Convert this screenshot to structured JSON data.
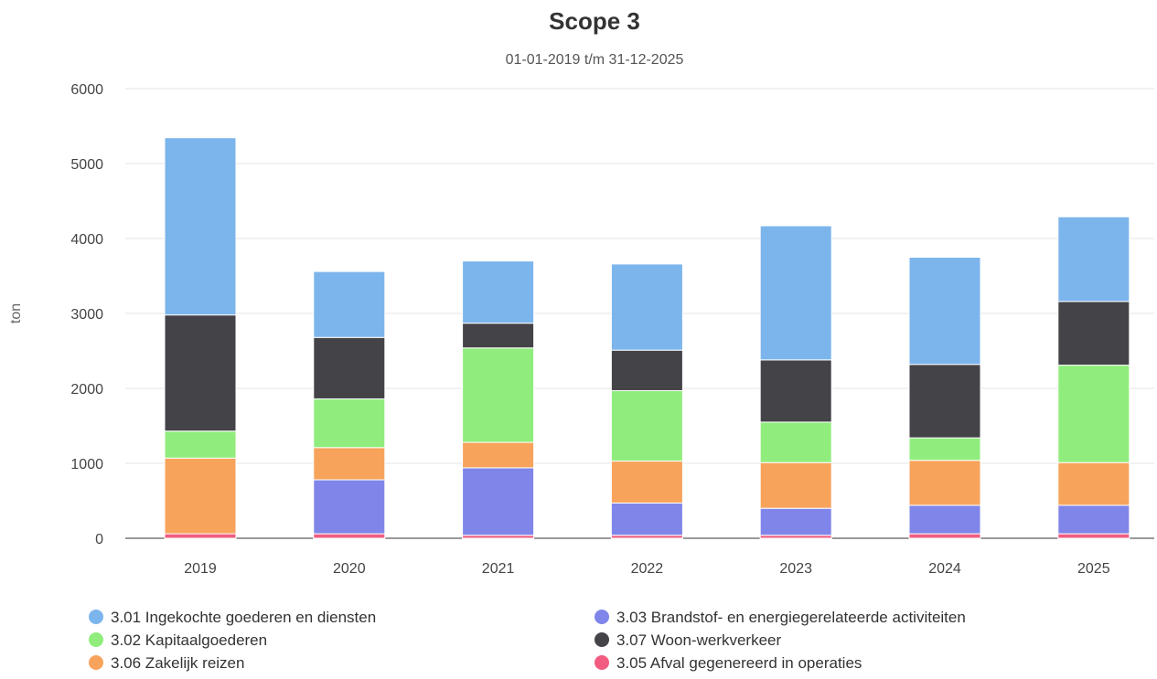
{
  "chart_data": {
    "type": "bar",
    "stacked": true,
    "title": "Scope 3",
    "subtitle": "01-01-2019 t/m 31-12-2025",
    "y_label": "ton",
    "categories": [
      "2019",
      "2020",
      "2021",
      "2022",
      "2023",
      "2024",
      "2025"
    ],
    "ylim": [
      0,
      6000
    ],
    "yticks": [
      0,
      1000,
      2000,
      3000,
      4000,
      5000,
      6000
    ],
    "grid": true,
    "series": [
      {
        "name": "3.05 Afval gegenereerd in operaties",
        "color": "#f15c80",
        "values": [
          60,
          60,
          40,
          40,
          40,
          60,
          60
        ]
      },
      {
        "name": "3.03 Brandstof- en energiegerelateerde activiteiten",
        "color": "#8085e9",
        "values": [
          0,
          720,
          900,
          430,
          360,
          380,
          380
        ]
      },
      {
        "name": "3.06 Zakelijk reizen",
        "color": "#f7a35c",
        "values": [
          1010,
          430,
          340,
          560,
          610,
          600,
          570
        ]
      },
      {
        "name": "3.02 Kapitaalgoederen",
        "color": "#90ed7d",
        "values": [
          360,
          650,
          1260,
          940,
          540,
          300,
          1300
        ]
      },
      {
        "name": "3.07 Woon-werkverkeer",
        "color": "#434348",
        "values": [
          1550,
          820,
          330,
          540,
          830,
          980,
          850
        ]
      },
      {
        "name": "3.01 Ingekochte goederen en diensten",
        "color": "#7cb5ec",
        "values": [
          2365,
          880,
          830,
          1150,
          1790,
          1430,
          1130
        ]
      }
    ]
  }
}
